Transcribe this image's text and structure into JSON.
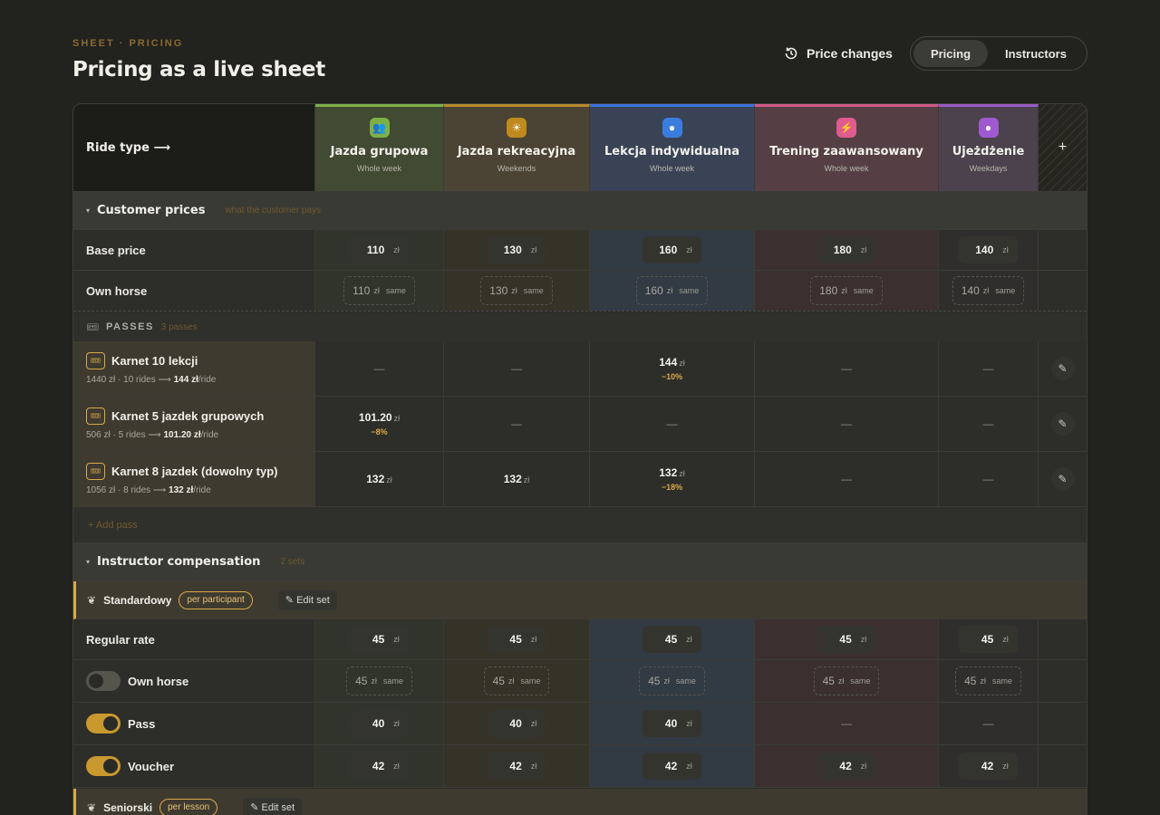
{
  "header": {
    "eyebrow": "SHEET · PRICING",
    "title": "Pricing as a live sheet",
    "price_changes_label": "Price changes",
    "tabs": [
      {
        "label": "Pricing",
        "active": true
      },
      {
        "label": "Instructors",
        "active": false
      }
    ]
  },
  "columns": {
    "corner_label": "Ride type ⟶",
    "add_symbol": "+",
    "items": [
      {
        "name": "Jazda grupowa",
        "sub": "Whole week",
        "icon": "group-icon",
        "glyph": "👥",
        "color": "#7db047"
      },
      {
        "name": "Jazda rekreacyjna",
        "sub": "Weekends",
        "icon": "sun-icon",
        "glyph": "☀",
        "color": "#c08a1e"
      },
      {
        "name": "Lekcja indywidualna",
        "sub": "Whole week",
        "icon": "circle-icon",
        "glyph": "●",
        "color": "#3b7ddd"
      },
      {
        "name": "Trening zaawansowany",
        "sub": "Whole week",
        "icon": "bolt-icon",
        "glyph": "⚡",
        "color": "#e05b8f"
      },
      {
        "name": "Ujeżdżenie",
        "sub": "Weekdays",
        "icon": "circle-icon",
        "glyph": "●",
        "color": "#a05ad0"
      }
    ]
  },
  "customer_prices": {
    "caret": "▾",
    "title": "Customer prices",
    "note": "what the customer pays",
    "unit": "zł",
    "same": "same",
    "base": {
      "label": "Base price",
      "values": [
        "110",
        "130",
        "160",
        "180",
        "140"
      ]
    },
    "own_horse": {
      "label": "Own horse",
      "values": [
        "110",
        "130",
        "160",
        "180",
        "140"
      ]
    }
  },
  "passes": {
    "icon_glyph": "🎟",
    "title": "PASSES",
    "note": "3 passes",
    "dash": "—",
    "edit_glyph": "✎",
    "unit": "zł",
    "items": [
      {
        "name": "Karnet 10 lekcji",
        "calc_pre": "1440 zł · 10 rides ⟶ ",
        "calc_bold": "144 zł",
        "calc_post": "/ride",
        "cells": [
          null,
          null,
          {
            "value": "144",
            "disc": "−10%"
          },
          null,
          null
        ]
      },
      {
        "name": "Karnet 5 jazdek grupowych",
        "calc_pre": "506 zł · 5 rides ⟶ ",
        "calc_bold": "101.20 zł",
        "calc_post": "/ride",
        "cells": [
          {
            "value": "101.20",
            "disc": "−8%"
          },
          null,
          null,
          null,
          null
        ]
      },
      {
        "name": "Karnet 8 jazdek (dowolny typ)",
        "calc_pre": "1056 zł · 8 rides ⟶ ",
        "calc_bold": "132 zł",
        "calc_post": "/ride",
        "cells": [
          {
            "value": "132",
            "disc": ""
          },
          {
            "value": "132",
            "disc": ""
          },
          {
            "value": "132",
            "disc": "−18%"
          },
          null,
          null
        ]
      }
    ],
    "add_label": "+ Add pass"
  },
  "instructor": {
    "caret": "▾",
    "title": "Instructor compensation",
    "note": "2 sets",
    "sets": [
      {
        "name": "Standardowy",
        "badge": "per participant",
        "edit": "✎ Edit set"
      },
      {
        "name": "Seniorski",
        "badge": "per lesson",
        "edit": "✎ Edit set"
      }
    ],
    "regular": {
      "label": "Regular rate",
      "values": [
        "45",
        "45",
        "45",
        "45",
        "45"
      ]
    },
    "own_horse": {
      "label": "Own horse",
      "values": [
        "45",
        "45",
        "45",
        "45",
        "45"
      ],
      "toggle": false
    },
    "pass": {
      "label": "Pass",
      "values": [
        "40",
        "40",
        "40",
        null,
        null
      ],
      "toggle": true
    },
    "voucher": {
      "label": "Voucher",
      "values": [
        "42",
        "42",
        "42",
        "42",
        "42"
      ],
      "toggle": true
    }
  }
}
